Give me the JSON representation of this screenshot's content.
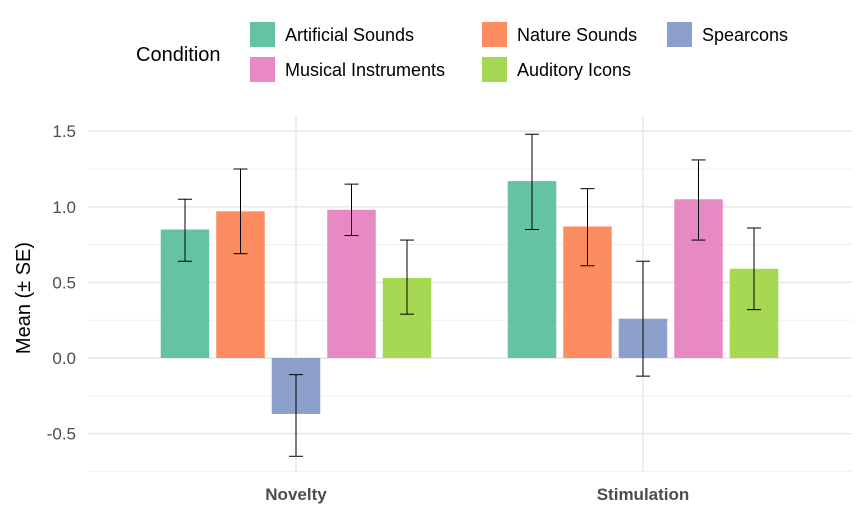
{
  "chart_data": {
    "type": "bar",
    "title": "",
    "xlabel": "",
    "ylabel": "Mean (± SE)",
    "ylim": [
      -0.68,
      1.62
    ],
    "yticks": [
      -0.5,
      0.0,
      0.5,
      1.0,
      1.5
    ],
    "ytick_labels": [
      "-0.5",
      "0.0",
      "0.5",
      "1.0",
      "1.5"
    ],
    "categories": [
      "Novelty",
      "Stimulation"
    ],
    "legend": {
      "title": "Condition",
      "placement": "top",
      "entries": [
        "Artificial Sounds",
        "Nature Sounds",
        "Spearcons",
        "Musical Instruments",
        "Auditory Icons"
      ]
    },
    "series": [
      {
        "name": "Artificial Sounds",
        "color": "#66c2a5",
        "values": [
          0.85,
          1.17
        ],
        "se_low": [
          0.64,
          0.85
        ],
        "se_high": [
          1.05,
          1.48
        ]
      },
      {
        "name": "Nature Sounds",
        "color": "#fc8d62",
        "values": [
          0.97,
          0.87
        ],
        "se_low": [
          0.69,
          0.61
        ],
        "se_high": [
          1.25,
          1.12
        ]
      },
      {
        "name": "Spearcons",
        "color": "#8da0cb",
        "values": [
          -0.37,
          0.26
        ],
        "se_low": [
          -0.65,
          -0.12
        ],
        "se_high": [
          -0.11,
          0.64
        ]
      },
      {
        "name": "Musical Instruments",
        "color": "#e78ac3",
        "values": [
          0.98,
          1.05
        ],
        "se_low": [
          0.81,
          0.78
        ],
        "se_high": [
          1.15,
          1.31
        ]
      },
      {
        "name": "Auditory Icons",
        "color": "#a6d854",
        "values": [
          0.53,
          0.59
        ],
        "se_low": [
          0.29,
          0.32
        ],
        "se_high": [
          0.78,
          0.86
        ]
      }
    ]
  }
}
